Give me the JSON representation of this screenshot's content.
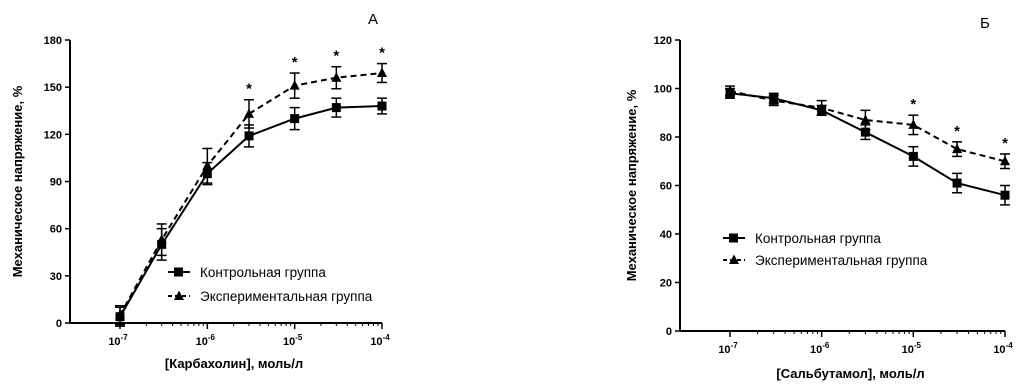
{
  "chart_data": [
    {
      "type": "line",
      "panel_label": "А",
      "ylabel": "Механическое напряжение, %",
      "xlabel": "[Карбахолин], моль/л",
      "ylim": [
        0,
        180
      ],
      "yticks": [
        "0",
        "30",
        "60",
        "90",
        "120",
        "150",
        "180"
      ],
      "x_scale": "log",
      "xticks": [
        {
          "base": "10",
          "exp": "-7"
        },
        {
          "base": "10",
          "exp": "-6"
        },
        {
          "base": "10",
          "exp": "-5"
        },
        {
          "base": "10",
          "exp": "-4"
        }
      ],
      "x": [
        "1e-7",
        "3e-7",
        "1e-6",
        "3e-6",
        "1e-5",
        "3e-5",
        "1e-4"
      ],
      "series": [
        {
          "name": "Контрольная группа",
          "marker": "square",
          "dash": "solid",
          "values": [
            4,
            50,
            95,
            119,
            130,
            137,
            138
          ],
          "errors": [
            6,
            10,
            7,
            7,
            7,
            6,
            5
          ]
        },
        {
          "name": "Экспериментальная группа",
          "marker": "triangle",
          "dash": "dashed",
          "values": [
            5,
            53,
            100,
            133,
            151,
            156,
            159
          ],
          "errors": [
            6,
            10,
            11,
            9,
            8,
            7,
            6
          ]
        }
      ],
      "significance": {
        "symbol": "*",
        "x": [
          "3e-6",
          "1e-5",
          "3e-5",
          "1e-4"
        ]
      },
      "legend": "bottom-right"
    },
    {
      "type": "line",
      "panel_label": "Б",
      "ylabel": "Механическое напряжение, %",
      "xlabel": "[Сальбутамол], моль/л",
      "ylim": [
        0,
        120
      ],
      "yticks": [
        "0",
        "20",
        "40",
        "60",
        "80",
        "100",
        "120"
      ],
      "x_scale": "log",
      "xticks": [
        {
          "base": "10",
          "exp": "-7"
        },
        {
          "base": "10",
          "exp": "-6"
        },
        {
          "base": "10",
          "exp": "-5"
        },
        {
          "base": "10",
          "exp": "-4"
        }
      ],
      "x": [
        "1e-7",
        "3e-7",
        "1e-6",
        "3e-6",
        "1e-5",
        "3e-5",
        "1e-4"
      ],
      "series": [
        {
          "name": "Контрольная группа",
          "marker": "square",
          "dash": "solid",
          "values": [
            98,
            96,
            91,
            82,
            72,
            61,
            56
          ],
          "errors": [
            2,
            2,
            2,
            3,
            4,
            4,
            4
          ]
        },
        {
          "name": "Экспериментальная группа",
          "marker": "triangle",
          "dash": "dashed",
          "values": [
            99,
            95,
            92,
            87,
            85,
            75,
            70
          ],
          "errors": [
            2,
            2,
            3,
            4,
            4,
            3,
            3
          ]
        }
      ],
      "significance": {
        "symbol": "*",
        "x": [
          "1e-5",
          "3e-5",
          "1e-4"
        ]
      },
      "legend": "bottom-left"
    }
  ]
}
